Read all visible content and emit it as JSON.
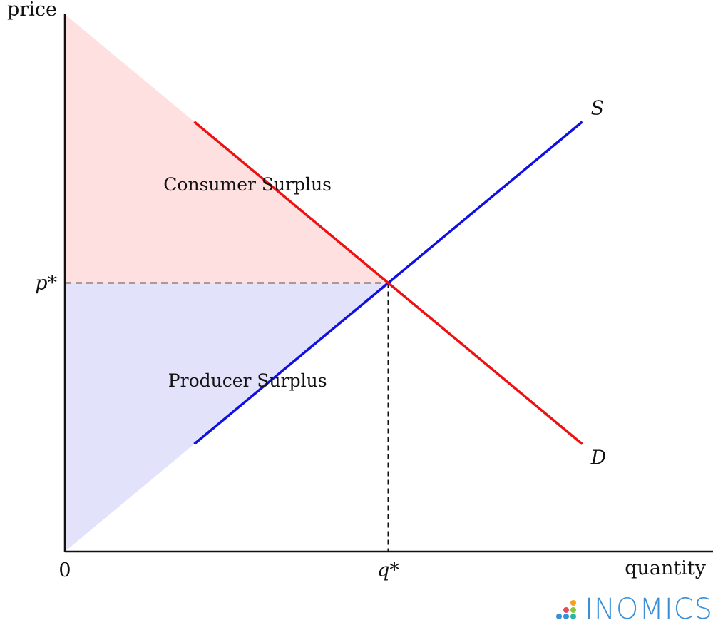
{
  "chart_data": {
    "type": "line",
    "xlabel": "quantity",
    "ylabel": "price",
    "xlim": [
      0,
      10
    ],
    "ylim": [
      0,
      10
    ],
    "x_ticks": [
      {
        "value": 0,
        "label": "0",
        "italic": false
      },
      {
        "value": 5,
        "label": "q*",
        "italic": true
      }
    ],
    "y_ticks": [
      {
        "value": 5,
        "label": "p*",
        "italic": true
      }
    ],
    "series": [
      {
        "name": "S",
        "color": "#1010e0",
        "points": [
          [
            2,
            2
          ],
          [
            8,
            8
          ]
        ]
      },
      {
        "name": "D",
        "color": "#ee1111",
        "points": [
          [
            2,
            8
          ],
          [
            8,
            2
          ]
        ]
      }
    ],
    "equilibrium": {
      "x": 5,
      "y": 5
    },
    "regions": [
      {
        "label": "Consumer Surplus",
        "color": "#ffe0e0",
        "points": [
          [
            0,
            10
          ],
          [
            0,
            5
          ],
          [
            5,
            5
          ]
        ]
      },
      {
        "label": "Producer Surplus",
        "color": "#e2e2fa",
        "points": [
          [
            0,
            0
          ],
          [
            0,
            5
          ],
          [
            5,
            5
          ]
        ]
      }
    ],
    "grid": false
  },
  "brand": {
    "name": "INOMICS",
    "icon": "dots-logo-icon"
  }
}
